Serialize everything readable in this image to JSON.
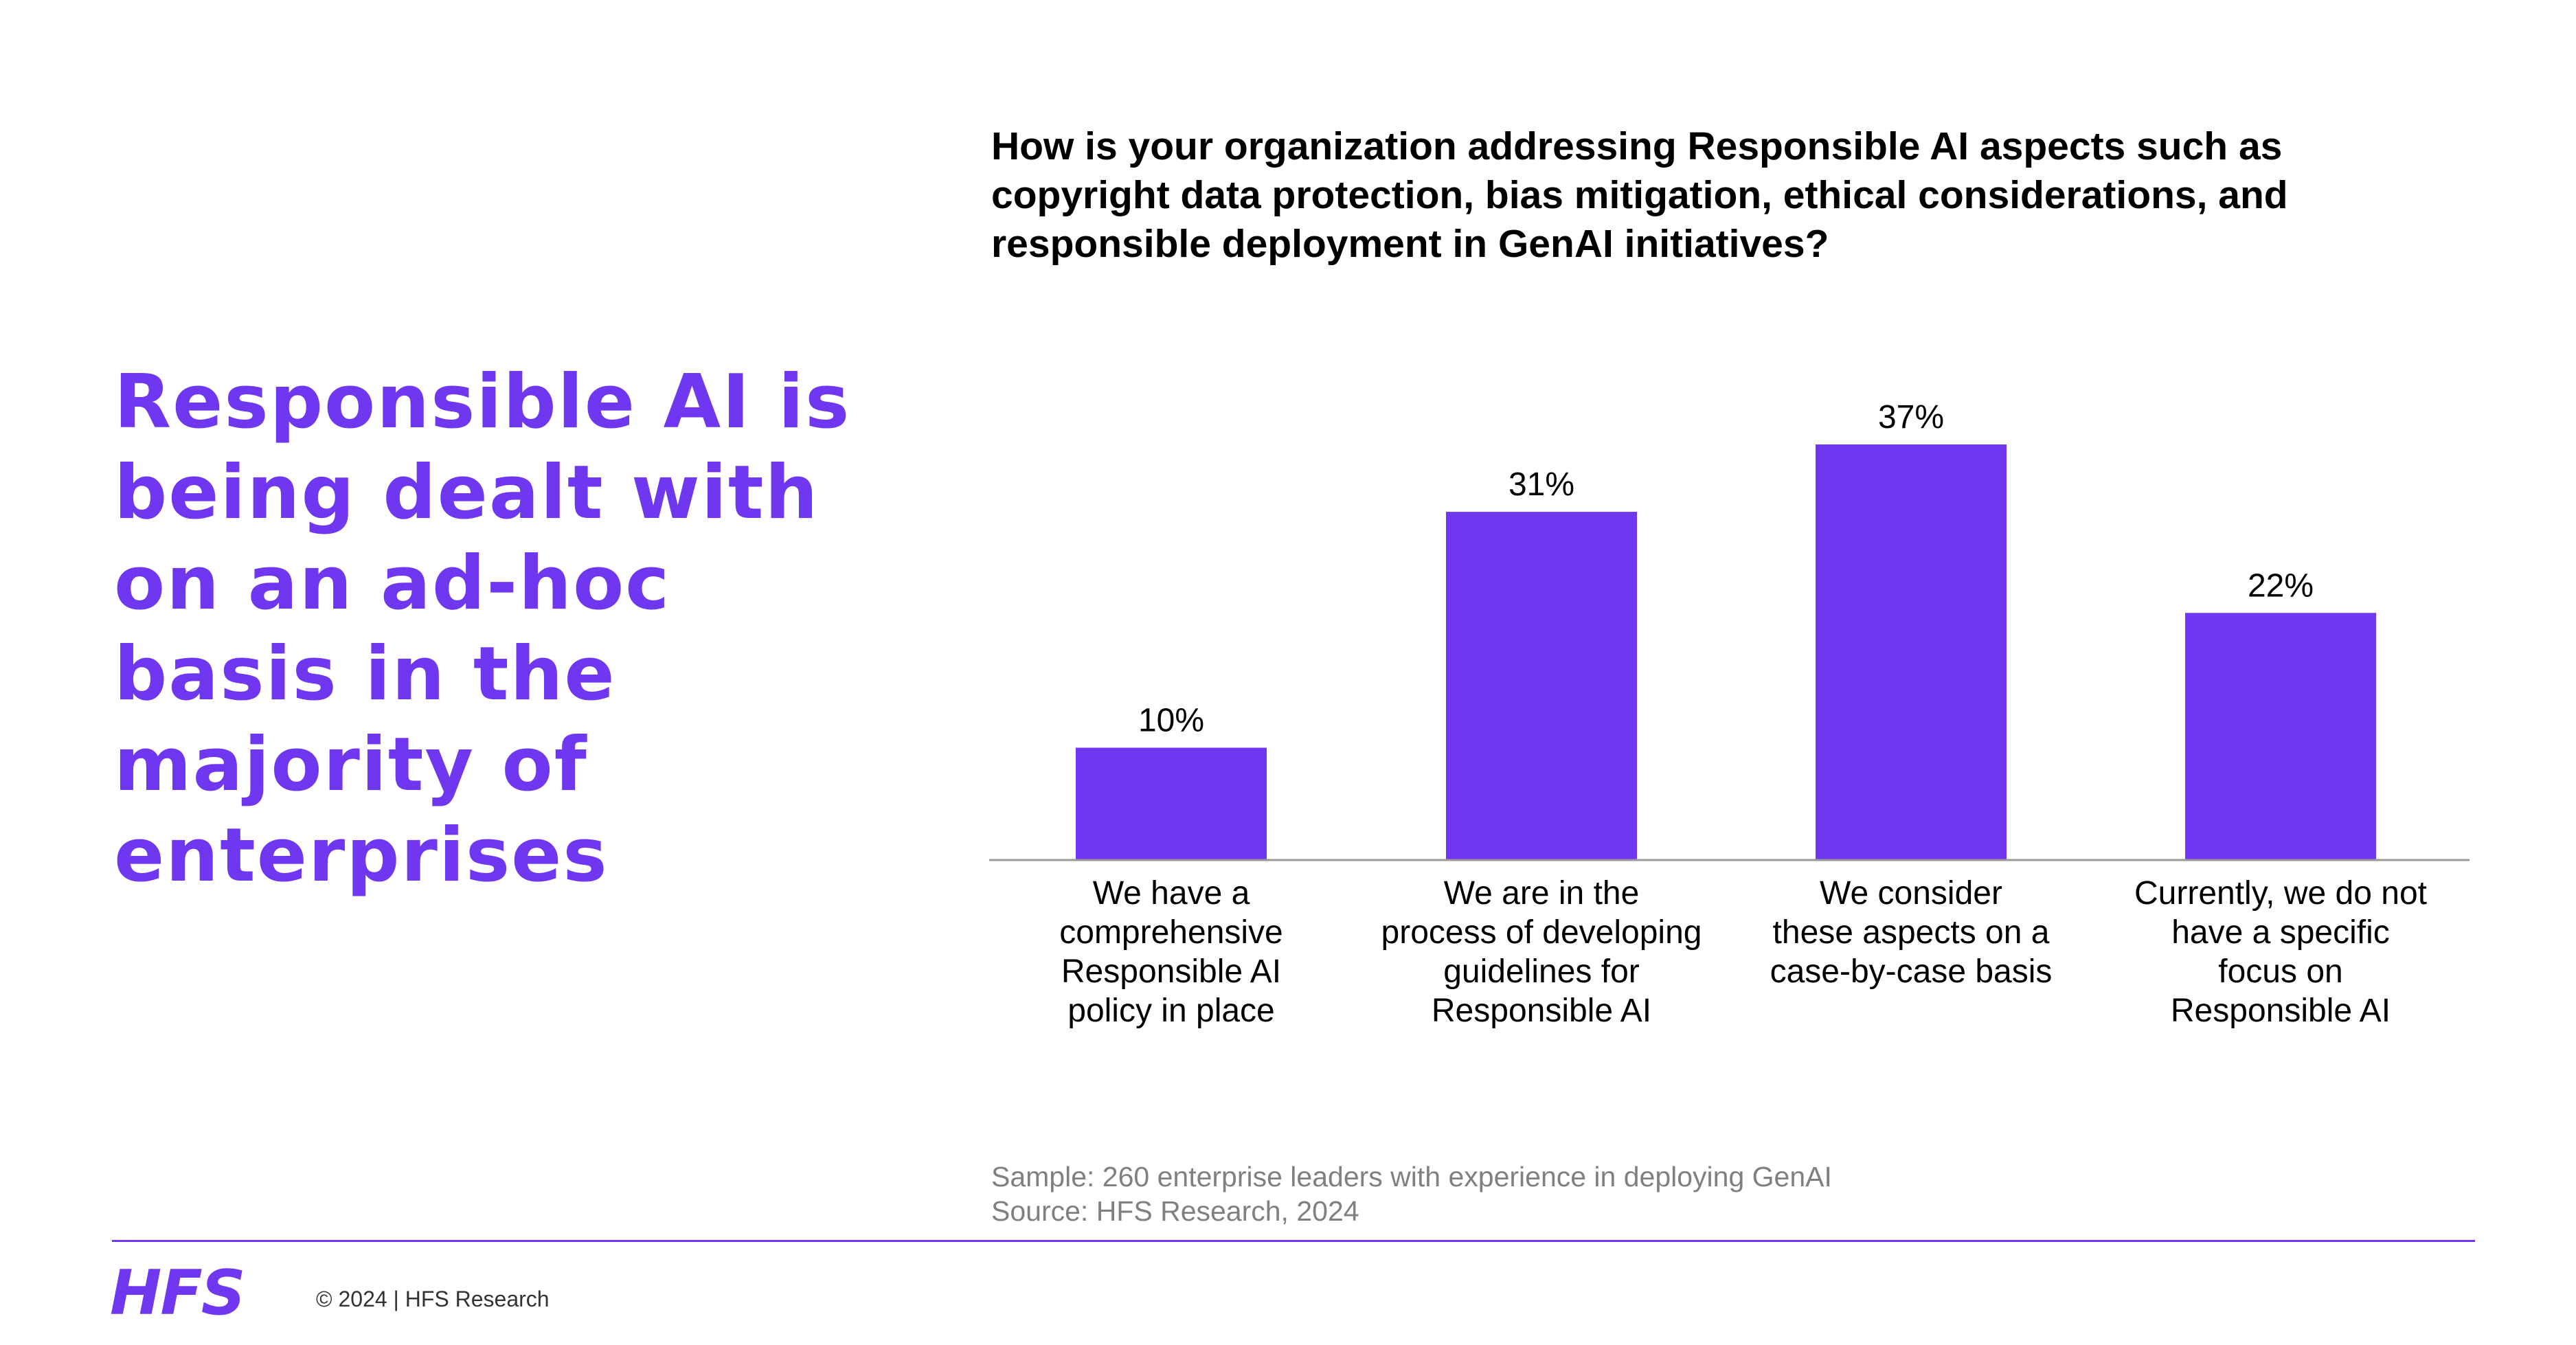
{
  "headline": "Responsible AI is being dealt with on an ad-hoc basis in the majority of enterprises",
  "colors": {
    "accent": "#7037F0",
    "text": "#000000",
    "muted": "#808080",
    "axis": "#999999"
  },
  "chart_data": {
    "type": "bar",
    "title": "How is your organization addressing Responsible AI aspects such as copyright data protection, bias mitigation, ethical considerations, and responsible deployment in GenAI initiatives?",
    "categories": [
      "We have a comprehensive Responsible AI policy in place",
      "We are in the process of developing guidelines for Responsible AI",
      "We consider these aspects on a case-by-case basis",
      "Currently, we do not have a specific focus on Responsible AI"
    ],
    "values": [
      10,
      31,
      37,
      22
    ],
    "data_labels": [
      "10%",
      "31%",
      "37%",
      "22%"
    ],
    "category_label_lines": [
      [
        "We have a",
        "comprehensive",
        "Responsible AI",
        "policy in place"
      ],
      [
        "We are in the",
        "process of developing",
        "guidelines for",
        "Responsible AI"
      ],
      [
        "We consider",
        "these aspects on a",
        "case-by-case basis"
      ],
      [
        "Currently, we do not",
        "have a specific",
        "focus on",
        "Responsible AI"
      ]
    ],
    "unit": "%",
    "ylim": [
      0,
      37
    ],
    "grid": false,
    "legend": "none",
    "bar_color": "#7037F0"
  },
  "footnotes": {
    "sample": "Sample: 260 enterprise leaders with experience in deploying GenAI",
    "source": "Source: HFS Research, 2024"
  },
  "footer": {
    "logo": "HFS",
    "copyright": "© 2024 | HFS Research"
  }
}
